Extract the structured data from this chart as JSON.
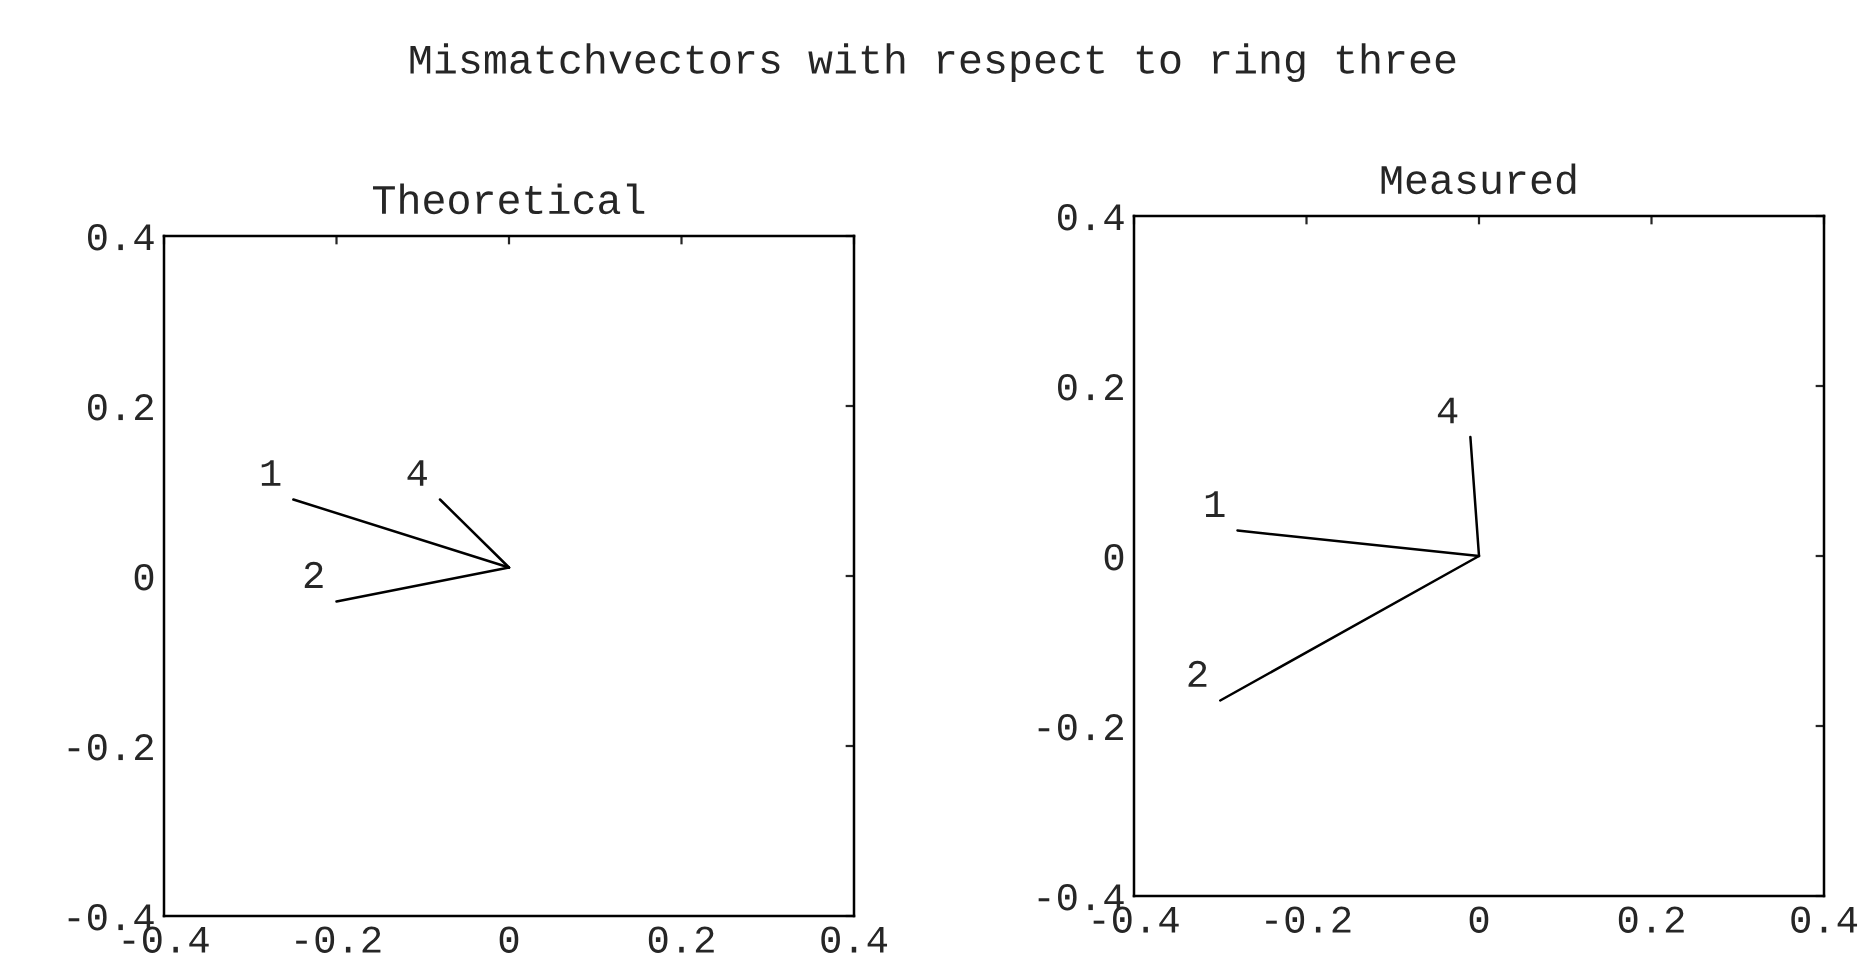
{
  "chart_data": [
    {
      "type": "line",
      "title": "Theoretical",
      "xlim": [
        -0.4,
        0.4
      ],
      "ylim": [
        -0.4,
        0.4
      ],
      "xticks": [
        -0.4,
        -0.2,
        0,
        0.2,
        0.4
      ],
      "yticks": [
        -0.4,
        -0.2,
        0,
        0.2,
        0.4
      ],
      "grid": false,
      "legend": false,
      "marker": "none",
      "line_style": "solid",
      "annotations": [
        "Mismatchvectors with respect to ring three"
      ],
      "series": [
        {
          "name": "1",
          "color": "#000000",
          "x": [
            0,
            -0.25
          ],
          "values": [
            0.01,
            0.09
          ]
        },
        {
          "name": "2",
          "color": "#000000",
          "x": [
            0,
            -0.2
          ],
          "values": [
            0.01,
            -0.03
          ]
        },
        {
          "name": "4",
          "color": "#000000",
          "x": [
            0,
            -0.08
          ],
          "values": [
            0.01,
            0.09
          ]
        }
      ]
    },
    {
      "type": "line",
      "title": "Measured",
      "xlim": [
        -0.4,
        0.4
      ],
      "ylim": [
        -0.4,
        0.4
      ],
      "xticks": [
        -0.4,
        -0.2,
        0,
        0.2,
        0.4
      ],
      "yticks": [
        -0.4,
        -0.2,
        0,
        0.2,
        0.4
      ],
      "grid": false,
      "legend": false,
      "marker": "none",
      "line_style": "solid",
      "series": [
        {
          "name": "1",
          "color": "#000000",
          "x": [
            0,
            -0.28
          ],
          "values": [
            0.0,
            0.03
          ]
        },
        {
          "name": "2",
          "color": "#000000",
          "x": [
            0,
            -0.3
          ],
          "values": [
            0.0,
            -0.17
          ]
        },
        {
          "name": "4",
          "color": "#000000",
          "x": [
            0,
            -0.01
          ],
          "values": [
            0.0,
            0.14
          ]
        }
      ]
    }
  ]
}
